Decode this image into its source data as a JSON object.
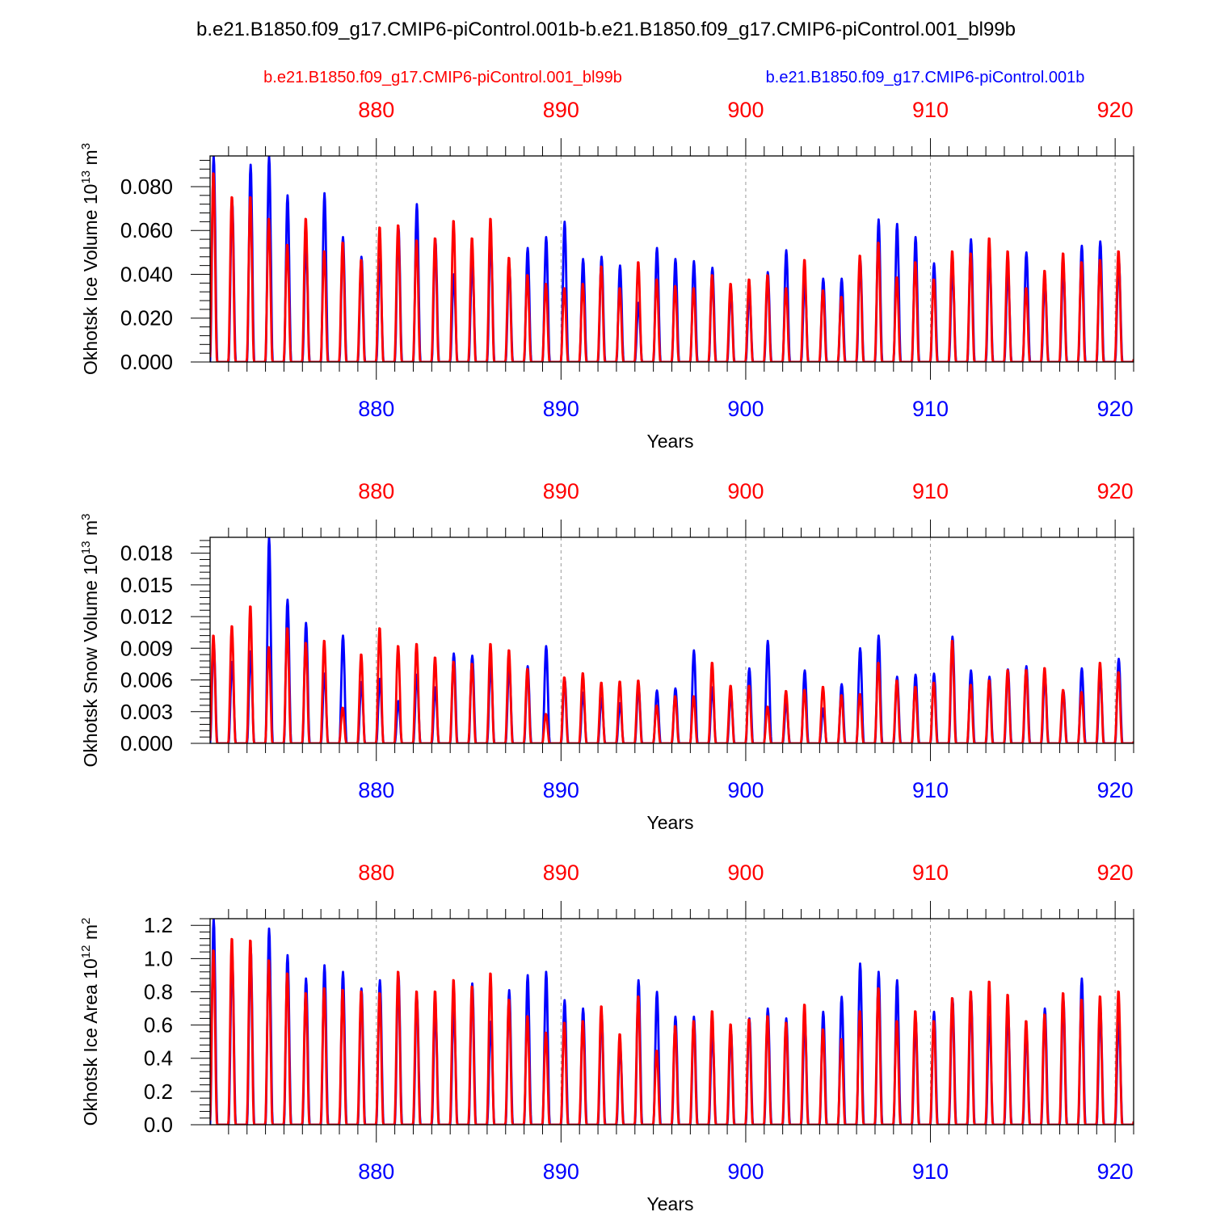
{
  "title": "b.e21.B1850.f09_g17.CMIP6-piControl.001b-b.e21.B1850.f09_g17.CMIP6-piControl.001_bl99b",
  "legend": {
    "red_label": "b.e21.B1850.f09_g17.CMIP6-piControl.001_bl99b",
    "blue_label": "b.e21.B1850.f09_g17.CMIP6-piControl.001b"
  },
  "colors": {
    "series_red": "#ff0000",
    "series_blue": "#0000ff",
    "axis": "#000000",
    "grid": "#999999"
  },
  "chart_data": [
    {
      "type": "line",
      "ylabel_text": "Okhotsk Ice Volume 10",
      "ylabel_exp": "13",
      "ylabel_unit": " m",
      "ylabel_unit_exp": "3",
      "xlabel": "Years",
      "xlim": [
        871,
        921
      ],
      "ylim": [
        0,
        0.094
      ],
      "yticks": [
        0.0,
        0.02,
        0.04,
        0.06,
        0.08
      ],
      "ytick_labels": [
        "0.000",
        "0.020",
        "0.040",
        "0.060",
        "0.080"
      ],
      "xticks": [
        880,
        890,
        900,
        910,
        920
      ],
      "xtick_labels": [
        "880",
        "890",
        "900",
        "910",
        "920"
      ],
      "series": [
        {
          "name": "b.e21.B1850.f09_g17.CMIP6-piControl.001b",
          "color": "blue",
          "annual_peaks": [
            0.094,
            0.074,
            0.09,
            0.094,
            0.076,
            0.055,
            0.077,
            0.057,
            0.048,
            0.047,
            0.062,
            0.072,
            0.056,
            0.04,
            0.046,
            0.057,
            0.044,
            0.052,
            0.057,
            0.064,
            0.047,
            0.048,
            0.044,
            0.027,
            0.052,
            0.047,
            0.046,
            0.043,
            0.033,
            0.031,
            0.041,
            0.051,
            0.037,
            0.038,
            0.038,
            0.047,
            0.065,
            0.063,
            0.057,
            0.045,
            0.043,
            0.056,
            0.05,
            0.042,
            0.05,
            0.037,
            0.043,
            0.053,
            0.055,
            0.047
          ]
        },
        {
          "name": "b.e21.B1850.f09_g17.CMIP6-piControl.001_bl99b",
          "color": "red",
          "annual_peaks": [
            0.087,
            0.076,
            0.076,
            0.066,
            0.054,
            0.066,
            0.051,
            0.055,
            0.047,
            0.062,
            0.063,
            0.056,
            0.057,
            0.065,
            0.057,
            0.066,
            0.048,
            0.04,
            0.036,
            0.034,
            0.036,
            0.044,
            0.034,
            0.046,
            0.038,
            0.035,
            0.034,
            0.04,
            0.036,
            0.038,
            0.04,
            0.034,
            0.047,
            0.033,
            0.03,
            0.049,
            0.055,
            0.039,
            0.046,
            0.038,
            0.051,
            0.05,
            0.057,
            0.051,
            0.034,
            0.042,
            0.05,
            0.046,
            0.047,
            0.051
          ]
        }
      ]
    },
    {
      "type": "line",
      "ylabel_text": "Okhotsk Snow Volume 10",
      "ylabel_exp": "13",
      "ylabel_unit": " m",
      "ylabel_unit_exp": "3",
      "xlabel": "Years",
      "xlim": [
        871,
        921
      ],
      "ylim": [
        0,
        0.0195
      ],
      "yticks": [
        0.0,
        0.003,
        0.006,
        0.009,
        0.012,
        0.015,
        0.018
      ],
      "ytick_labels": [
        "0.000",
        "0.003",
        "0.006",
        "0.009",
        "0.012",
        "0.015",
        "0.018"
      ],
      "xticks": [
        880,
        890,
        900,
        910,
        920
      ],
      "xtick_labels": [
        "880",
        "890",
        "900",
        "910",
        "920"
      ],
      "series": [
        {
          "name": "b.e21.B1850.f09_g17.CMIP6-piControl.001b",
          "color": "blue",
          "annual_peaks": [
            0.0095,
            0.0077,
            0.0087,
            0.0195,
            0.0136,
            0.0114,
            0.0066,
            0.0102,
            0.0058,
            0.0061,
            0.004,
            0.0065,
            0.0053,
            0.0085,
            0.0083,
            0.0075,
            0.0073,
            0.0073,
            0.0092,
            0.0061,
            0.0048,
            0.0043,
            0.0038,
            0.0054,
            0.005,
            0.0052,
            0.0088,
            0.0053,
            0.0047,
            0.0071,
            0.0097,
            0.0039,
            0.0069,
            0.0033,
            0.0056,
            0.009,
            0.0102,
            0.0063,
            0.0065,
            0.0066,
            0.0101,
            0.0069,
            0.0063,
            0.007,
            0.0073,
            0.0064,
            0.005,
            0.0071,
            0.0067,
            0.008
          ]
        },
        {
          "name": "b.e21.B1850.f09_g17.CMIP6-piControl.001_bl99b",
          "color": "red",
          "annual_peaks": [
            0.0103,
            0.0112,
            0.0131,
            0.0092,
            0.011,
            0.0096,
            0.0098,
            0.0034,
            0.0085,
            0.011,
            0.0093,
            0.0095,
            0.0082,
            0.0078,
            0.0076,
            0.0095,
            0.0089,
            0.0071,
            0.0028,
            0.0063,
            0.0067,
            0.0058,
            0.0059,
            0.006,
            0.0036,
            0.0045,
            0.0045,
            0.0077,
            0.0055,
            0.0055,
            0.0035,
            0.005,
            0.0051,
            0.0054,
            0.0046,
            0.0047,
            0.0077,
            0.006,
            0.0054,
            0.0058,
            0.0098,
            0.0056,
            0.006,
            0.007,
            0.007,
            0.0072,
            0.0051,
            0.0049,
            0.0077,
            0.0068
          ]
        }
      ]
    },
    {
      "type": "line",
      "ylabel_text": "Okhotsk Ice Area 10",
      "ylabel_exp": "12",
      "ylabel_unit": " m",
      "ylabel_unit_exp": "2",
      "xlabel": "Years",
      "xlim": [
        871,
        921
      ],
      "ylim": [
        0,
        1.24
      ],
      "yticks": [
        0.0,
        0.2,
        0.4,
        0.6,
        0.8,
        1.0,
        1.2
      ],
      "ytick_labels": [
        "0.0",
        "0.2",
        "0.4",
        "0.6",
        "0.8",
        "1.0",
        "1.2"
      ],
      "xticks": [
        880,
        890,
        900,
        910,
        920
      ],
      "xtick_labels": [
        "880",
        "890",
        "900",
        "910",
        "920"
      ],
      "series": [
        {
          "name": "b.e21.B1850.f09_g17.CMIP6-piControl.001b",
          "color": "blue",
          "annual_peaks": [
            1.24,
            1.02,
            1.07,
            1.18,
            1.02,
            0.88,
            0.96,
            0.92,
            0.82,
            0.87,
            0.91,
            0.77,
            0.71,
            0.72,
            0.85,
            0.62,
            0.81,
            0.9,
            0.92,
            0.75,
            0.7,
            0.67,
            0.48,
            0.87,
            0.8,
            0.65,
            0.65,
            0.57,
            0.57,
            0.64,
            0.7,
            0.64,
            0.64,
            0.68,
            0.77,
            0.97,
            0.92,
            0.87,
            0.64,
            0.68,
            0.76,
            0.78,
            0.65,
            0.7,
            0.56,
            0.7,
            0.76,
            0.88,
            0.7,
            0.65
          ]
        },
        {
          "name": "b.e21.B1850.f09_g17.CMIP6-piControl.001_bl99b",
          "color": "red",
          "annual_peaks": [
            1.06,
            1.13,
            1.12,
            1.0,
            0.92,
            0.8,
            0.83,
            0.82,
            0.81,
            0.8,
            0.93,
            0.81,
            0.81,
            0.88,
            0.84,
            0.92,
            0.76,
            0.66,
            0.56,
            0.62,
            0.63,
            0.72,
            0.55,
            0.78,
            0.45,
            0.6,
            0.63,
            0.69,
            0.61,
            0.64,
            0.66,
            0.62,
            0.73,
            0.58,
            0.52,
            0.69,
            0.83,
            0.63,
            0.69,
            0.63,
            0.77,
            0.81,
            0.87,
            0.79,
            0.63,
            0.67,
            0.8,
            0.76,
            0.78,
            0.81
          ]
        }
      ]
    }
  ]
}
